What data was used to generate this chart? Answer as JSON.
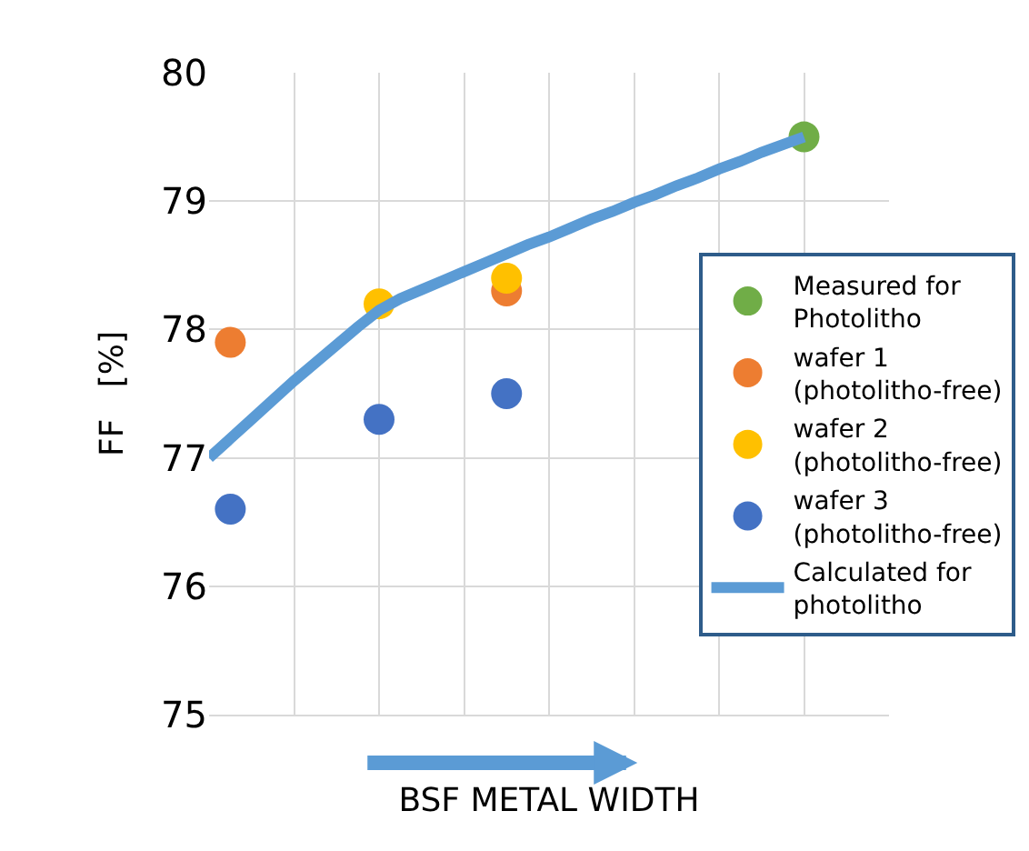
{
  "chart_data": {
    "type": "scatter",
    "xlabel": "BSF METAL WIDTH",
    "ylabel": "FF   [%]",
    "categories": [
      null,
      null,
      null,
      null,
      null,
      null,
      null,
      null,
      null,
      null,
      null,
      null,
      null,
      null,
      null,
      null,
      null,
      null,
      null,
      null,
      null,
      null,
      null,
      null,
      null,
      null,
      null,
      null,
      null,
      null,
      null,
      null,
      null
    ],
    "ylim": [
      75,
      80
    ],
    "yticks": [
      75,
      76,
      77,
      78,
      79,
      80
    ],
    "grid": true,
    "legend": "right",
    "marker": "circle",
    "series": [
      {
        "name": "Calculated for photolitho",
        "type": "line",
        "marker": "none",
        "color": "#5b9bd5",
        "values": [
          77.0,
          77.15,
          77.3,
          77.45,
          77.6,
          77.74,
          77.88,
          78.02,
          78.15,
          78.24,
          78.31,
          78.38,
          78.45,
          78.52,
          78.59,
          78.66,
          78.72,
          78.79,
          78.86,
          78.92,
          78.99,
          79.05,
          79.12,
          79.18,
          79.25,
          79.31,
          79.38,
          79.44,
          79.5,
          null,
          null,
          null,
          null
        ]
      },
      {
        "name": "Measured for Photolitho",
        "color": "#70ad47",
        "values": [
          null,
          null,
          null,
          null,
          null,
          null,
          null,
          null,
          null,
          null,
          null,
          null,
          null,
          null,
          null,
          null,
          null,
          null,
          null,
          null,
          null,
          null,
          null,
          null,
          null,
          null,
          null,
          null,
          79.5,
          null,
          null,
          null,
          null
        ]
      },
      {
        "name": "wafer 1 (photolitho-free)",
        "color": "#ed7d31",
        "values": [
          null,
          77.9,
          null,
          null,
          null,
          null,
          null,
          null,
          null,
          null,
          null,
          null,
          null,
          null,
          78.3,
          null,
          null,
          null,
          null,
          null,
          null,
          null,
          null,
          null,
          null,
          null,
          null,
          null,
          null,
          null,
          null,
          null,
          null
        ]
      },
      {
        "name": "wafer 2 (photolitho-free)",
        "color": "#ffc000",
        "values": [
          null,
          null,
          null,
          null,
          null,
          null,
          null,
          null,
          78.2,
          null,
          null,
          null,
          null,
          null,
          78.4,
          null,
          null,
          null,
          null,
          null,
          null,
          null,
          null,
          null,
          null,
          null,
          null,
          null,
          null,
          null,
          null,
          null,
          null
        ]
      },
      {
        "name": "wafer 3 (photolitho-free)",
        "color": "#4472c4",
        "values": [
          null,
          76.6,
          null,
          null,
          null,
          null,
          null,
          null,
          77.3,
          null,
          null,
          null,
          null,
          null,
          77.5,
          null,
          null,
          null,
          null,
          null,
          null,
          null,
          null,
          null,
          null,
          null,
          null,
          null,
          null,
          null,
          null,
          null,
          null
        ]
      }
    ]
  }
}
